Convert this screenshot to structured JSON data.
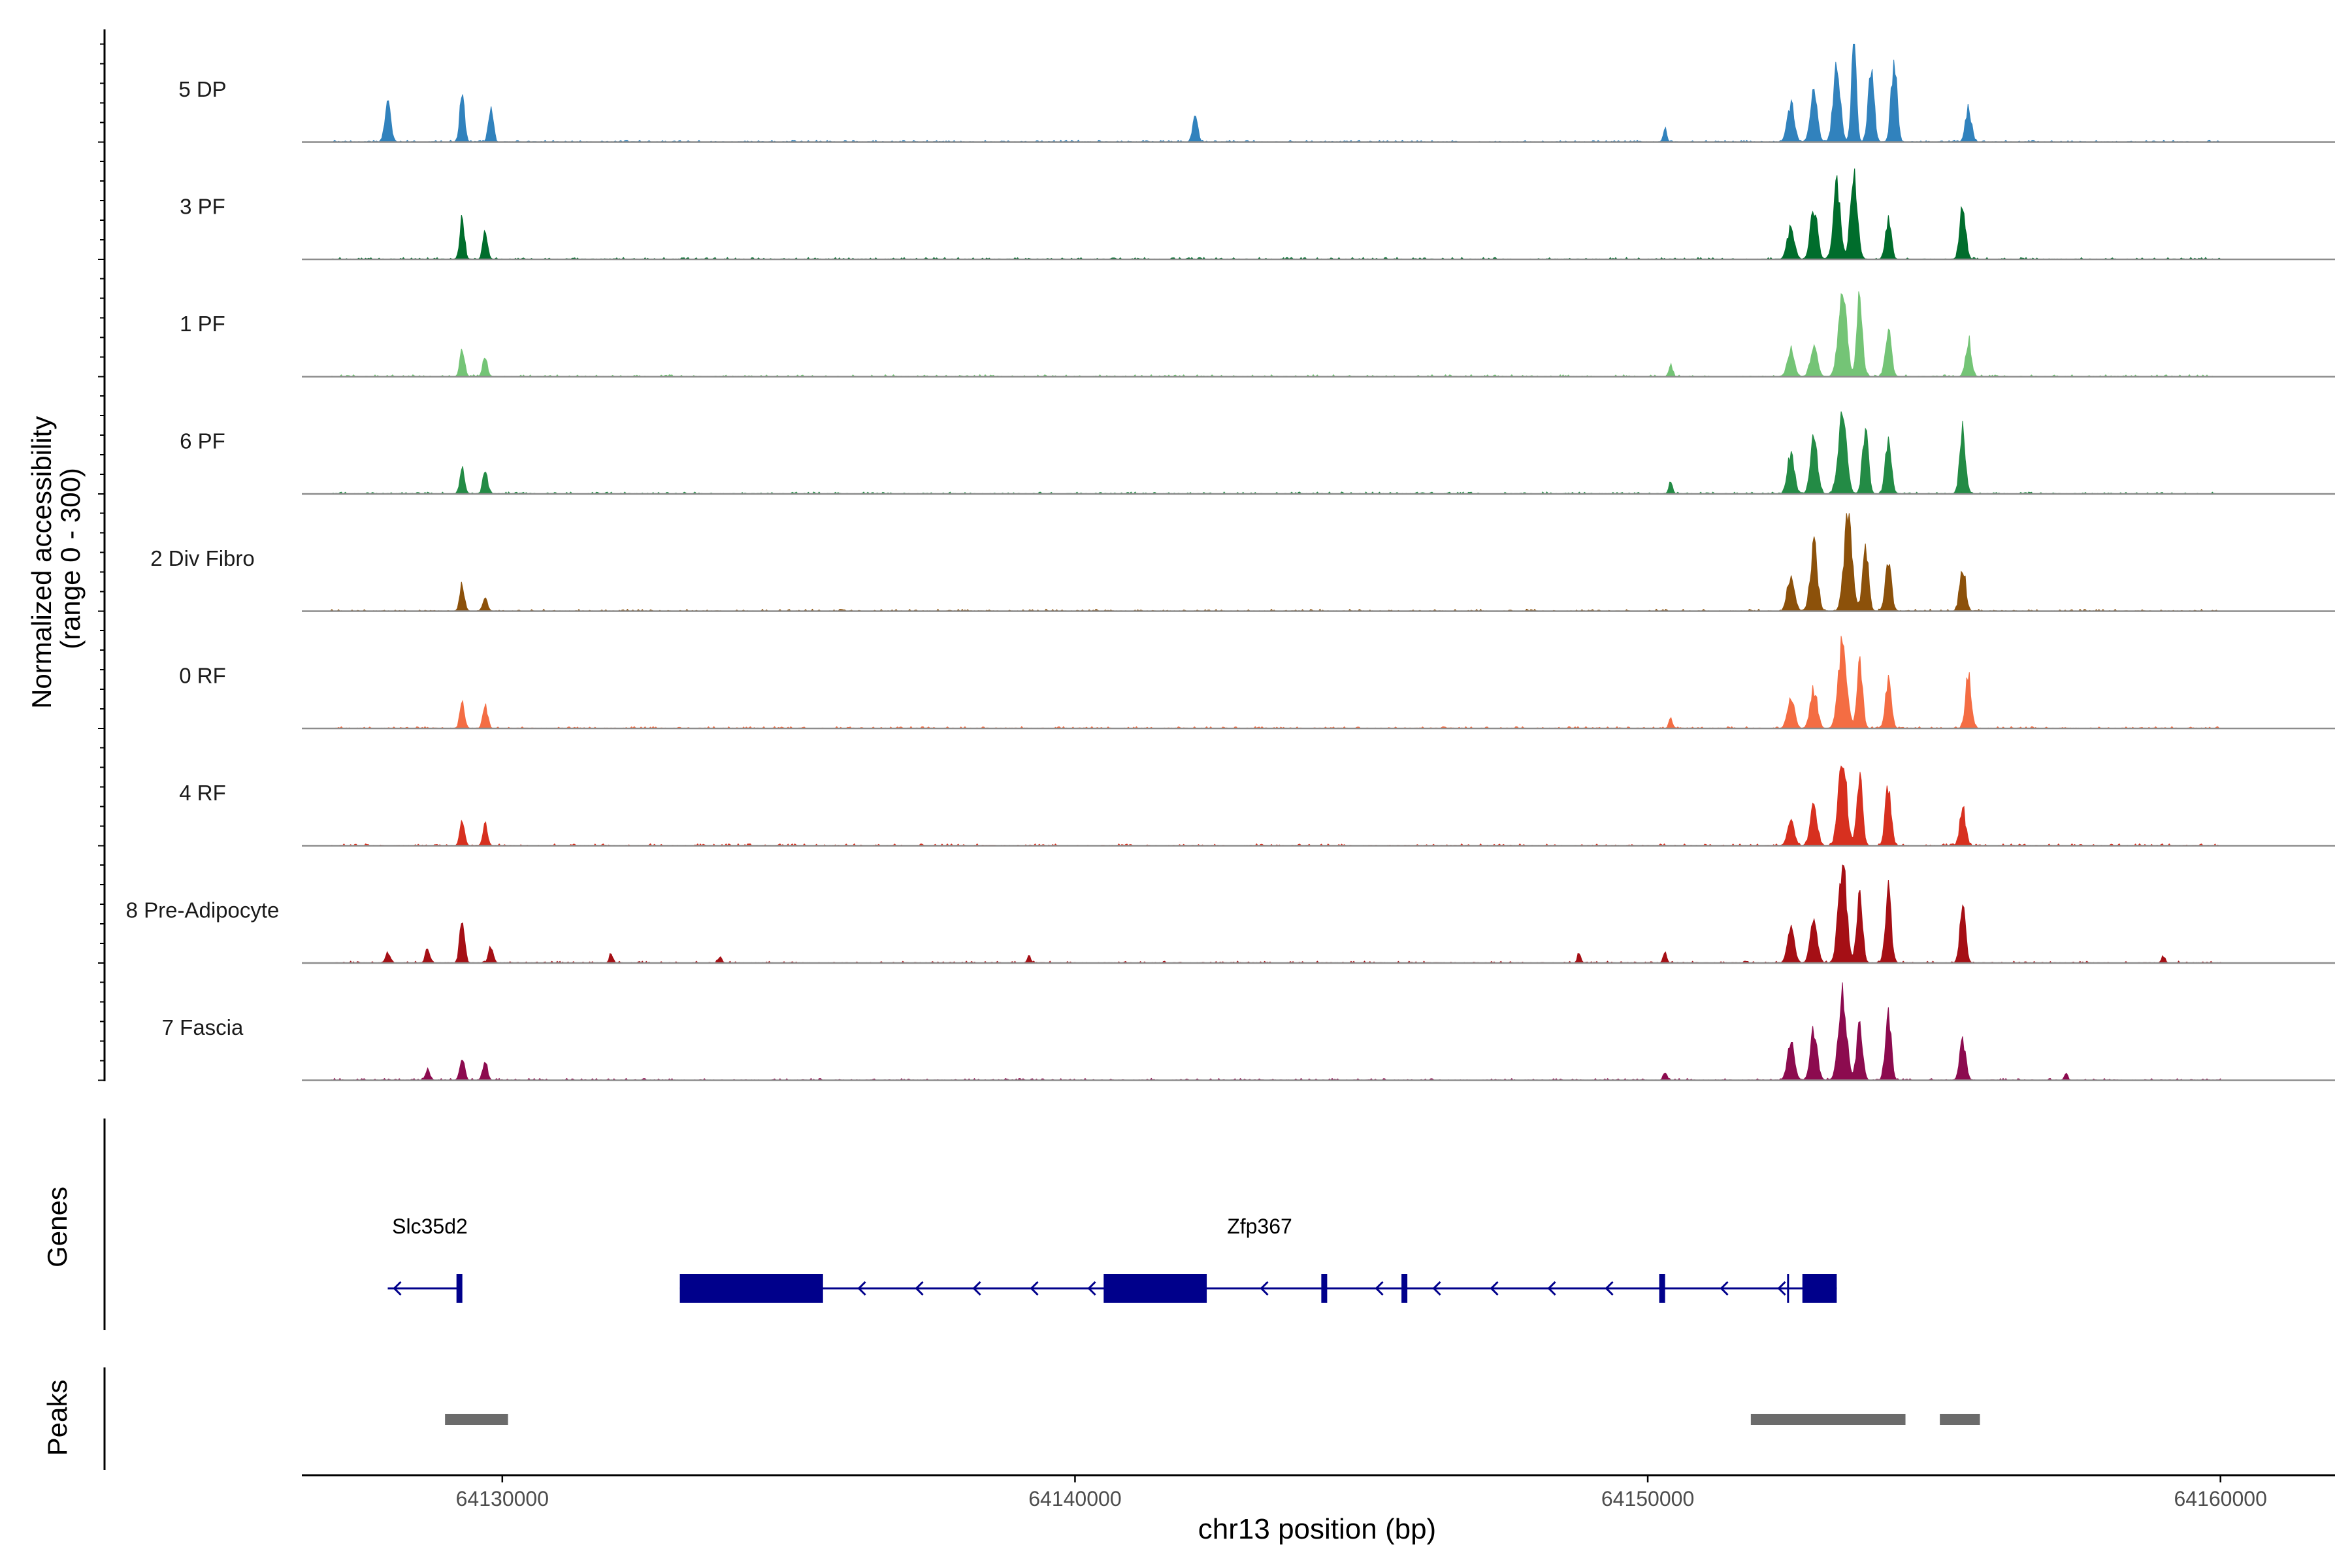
{
  "chart_data": {
    "type": "area",
    "title": "",
    "ylabel_line1": "Normalized accessibility",
    "ylabel_line2": "(range 0 - 300)",
    "xlabel": "chr13 position (bp)",
    "genes_label": "Genes",
    "peaks_label": "Peaks",
    "xlim": [
      64126500,
      64162000
    ],
    "ylim": [
      0,
      300
    ],
    "x_ticks": [
      64130000,
      64140000,
      64150000,
      64160000
    ],
    "x_tick_labels": [
      "64130000",
      "64140000",
      "64150000",
      "64160000"
    ],
    "tracks": [
      {
        "name": "5 DP",
        "color": "#3182bd",
        "peaks": [
          [
            64128000,
            50,
            120
          ],
          [
            64129300,
            40,
            160
          ],
          [
            64129800,
            40,
            110
          ],
          [
            64142100,
            40,
            90
          ],
          [
            64150300,
            30,
            40
          ],
          [
            64152500,
            60,
            110
          ],
          [
            64152900,
            60,
            150
          ],
          [
            64153300,
            60,
            220
          ],
          [
            64153600,
            40,
            300
          ],
          [
            64153900,
            50,
            220
          ],
          [
            64154300,
            50,
            240
          ],
          [
            64155600,
            50,
            100
          ]
        ]
      },
      {
        "name": "3 PF",
        "color": "#006d2c",
        "peaks": [
          [
            64129300,
            40,
            120
          ],
          [
            64129700,
            40,
            80
          ],
          [
            64152500,
            60,
            100
          ],
          [
            64152900,
            60,
            150
          ],
          [
            64153300,
            60,
            220
          ],
          [
            64153600,
            60,
            270
          ],
          [
            64154200,
            50,
            120
          ],
          [
            64155500,
            50,
            170
          ]
        ]
      },
      {
        "name": "1 PF",
        "color": "#74c476",
        "peaks": [
          [
            64129300,
            40,
            80
          ],
          [
            64129700,
            40,
            60
          ],
          [
            64150400,
            30,
            40
          ],
          [
            64152500,
            60,
            80
          ],
          [
            64152900,
            60,
            90
          ],
          [
            64153400,
            70,
            280
          ],
          [
            64153700,
            50,
            230
          ],
          [
            64154200,
            50,
            150
          ],
          [
            64155600,
            50,
            110
          ]
        ]
      },
      {
        "name": "6 PF",
        "color": "#238b45",
        "peaks": [
          [
            64129300,
            40,
            80
          ],
          [
            64129700,
            40,
            70
          ],
          [
            64150400,
            30,
            35
          ],
          [
            64152500,
            60,
            120
          ],
          [
            64152900,
            60,
            170
          ],
          [
            64153400,
            70,
            260
          ],
          [
            64153800,
            50,
            200
          ],
          [
            64154200,
            50,
            170
          ],
          [
            64155500,
            50,
            190
          ]
        ]
      },
      {
        "name": "2 Div Fibro",
        "color": "#8c510a",
        "peaks": [
          [
            64129300,
            40,
            80
          ],
          [
            64129700,
            40,
            40
          ],
          [
            64152500,
            60,
            110
          ],
          [
            64152900,
            60,
            200
          ],
          [
            64153500,
            70,
            290
          ],
          [
            64153800,
            50,
            200
          ],
          [
            64154200,
            50,
            160
          ],
          [
            64155500,
            50,
            140
          ]
        ]
      },
      {
        "name": "0 RF",
        "color": "#f46d43",
        "peaks": [
          [
            64129300,
            40,
            80
          ],
          [
            64129700,
            40,
            70
          ],
          [
            64150400,
            30,
            30
          ],
          [
            64152500,
            60,
            90
          ],
          [
            64152900,
            60,
            120
          ],
          [
            64153400,
            70,
            270
          ],
          [
            64153700,
            50,
            190
          ],
          [
            64154200,
            50,
            140
          ],
          [
            64155600,
            50,
            160
          ]
        ]
      },
      {
        "name": "4 RF",
        "color": "#d7301f",
        "peaks": [
          [
            64129300,
            40,
            70
          ],
          [
            64129700,
            40,
            60
          ],
          [
            64152500,
            60,
            80
          ],
          [
            64152900,
            60,
            120
          ],
          [
            64153400,
            70,
            270
          ],
          [
            64153700,
            50,
            200
          ],
          [
            64154200,
            50,
            190
          ],
          [
            64155500,
            50,
            110
          ]
        ]
      },
      {
        "name": "8 Pre-Adipocyte",
        "color": "#a50f15",
        "peaks": [
          [
            64128000,
            40,
            30
          ],
          [
            64128700,
            40,
            40
          ],
          [
            64129300,
            40,
            140
          ],
          [
            64129800,
            40,
            50
          ],
          [
            64131900,
            30,
            30
          ],
          [
            64133800,
            30,
            20
          ],
          [
            64139200,
            30,
            20
          ],
          [
            64148800,
            30,
            30
          ],
          [
            64150300,
            30,
            30
          ],
          [
            64152500,
            60,
            100
          ],
          [
            64152900,
            60,
            120
          ],
          [
            64153400,
            70,
            300
          ],
          [
            64153700,
            50,
            200
          ],
          [
            64154200,
            50,
            210
          ],
          [
            64155500,
            50,
            160
          ],
          [
            64159000,
            30,
            20
          ],
          [
            64160100,
            30,
            15
          ]
        ]
      },
      {
        "name": "7 Fascia",
        "color": "#8c0b4f",
        "peaks": [
          [
            64128700,
            40,
            30
          ],
          [
            64129300,
            40,
            70
          ],
          [
            64129700,
            40,
            60
          ],
          [
            64150300,
            30,
            25
          ],
          [
            64152500,
            60,
            110
          ],
          [
            64152900,
            60,
            150
          ],
          [
            64153400,
            70,
            250
          ],
          [
            64153700,
            50,
            180
          ],
          [
            64154200,
            50,
            200
          ],
          [
            64155500,
            50,
            120
          ],
          [
            64157300,
            30,
            20
          ]
        ]
      }
    ],
    "genes": [
      {
        "name": "Slc35d2",
        "strand": "-",
        "start": 64128000,
        "end": 64129300,
        "exons": [
          [
            64129200,
            64129300
          ]
        ]
      },
      {
        "name": "Zfp367",
        "strand": "-",
        "start": 64133100,
        "end": 64153300,
        "exons": [
          [
            64133100,
            64135600
          ],
          [
            64140500,
            64142300
          ],
          [
            64144300,
            64144400
          ],
          [
            64145700,
            64145800
          ],
          [
            64150200,
            64150300
          ],
          [
            64152700,
            64153300
          ]
        ],
        "tss_mark": 64152450
      }
    ],
    "peaks_regions": [
      [
        64129000,
        64130100
      ],
      [
        64151800,
        64154500
      ],
      [
        64155100,
        64155800
      ]
    ]
  }
}
